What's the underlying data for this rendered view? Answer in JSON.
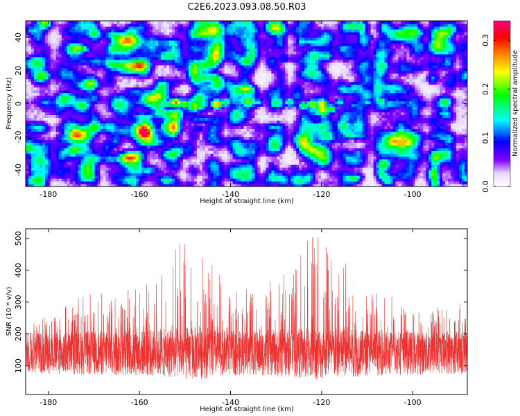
{
  "title": "C2E6.2023.093.08.50.R03",
  "chart_data": [
    {
      "type": "heatmap",
      "xlabel": "Height of straight line (km)",
      "ylabel": "Frequency (Hz)",
      "xlim": [
        -185,
        -88
      ],
      "ylim": [
        -50,
        50
      ],
      "x_ticks": [
        -180,
        -160,
        -140,
        -120,
        -100
      ],
      "y_ticks": [
        -40,
        -20,
        0,
        20,
        40
      ],
      "colorbar": {
        "label": "Normalized spectral amplitude",
        "range": [
          0.0,
          0.34
        ],
        "ticks": [
          0.0,
          0.1,
          0.2,
          0.3
        ],
        "colors": [
          "#ffffff",
          "#8000ff",
          "#0000ff",
          "#00ffff",
          "#00ff00",
          "#ffff00",
          "#ff8000",
          "#ff0000",
          "#ff0080"
        ]
      },
      "background_level": 0.05,
      "band_center_hz": 0,
      "band_halfwidth_hz": 4,
      "hotspots": [
        {
          "x": -181,
          "y": 1,
          "v": 0.12
        },
        {
          "x": -174,
          "y": 0,
          "v": 0.1
        },
        {
          "x": -164,
          "y": -1,
          "v": 0.16
        },
        {
          "x": -160,
          "y": 1,
          "v": 0.12
        },
        {
          "x": -156,
          "y": -1,
          "v": 0.17
        },
        {
          "x": -154,
          "y": 0,
          "v": 0.18
        },
        {
          "x": -152,
          "y": 1,
          "v": 0.28
        },
        {
          "x": -150,
          "y": 0,
          "v": 0.22
        },
        {
          "x": -148,
          "y": -1,
          "v": 0.2
        },
        {
          "x": -146,
          "y": 0,
          "v": 0.16
        },
        {
          "x": -143,
          "y": 0,
          "v": 0.27
        },
        {
          "x": -141,
          "y": 1,
          "v": 0.18
        },
        {
          "x": -138,
          "y": -2,
          "v": 0.13
        },
        {
          "x": -134,
          "y": 1,
          "v": 0.14
        },
        {
          "x": -130,
          "y": 0,
          "v": 0.12
        },
        {
          "x": -127,
          "y": 1,
          "v": 0.17
        },
        {
          "x": -124,
          "y": -1,
          "v": 0.18
        },
        {
          "x": -122,
          "y": 0,
          "v": 0.23
        },
        {
          "x": -120,
          "y": 0,
          "v": 0.26
        },
        {
          "x": -118,
          "y": -3,
          "v": 0.2
        },
        {
          "x": -116,
          "y": 1,
          "v": 0.15
        },
        {
          "x": -113,
          "y": -1,
          "v": 0.12
        },
        {
          "x": -110,
          "y": 1,
          "v": 0.14
        },
        {
          "x": -107,
          "y": 2,
          "v": 0.18
        },
        {
          "x": -105,
          "y": 0,
          "v": 0.14
        },
        {
          "x": -98,
          "y": 0,
          "v": 0.1
        },
        {
          "x": -112,
          "y": -30,
          "v": 0.13
        },
        {
          "x": -110,
          "y": 40,
          "v": 0.12
        },
        {
          "x": -176,
          "y": -40,
          "v": 0.1
        },
        {
          "x": -92,
          "y": 45,
          "v": 0.11
        },
        {
          "x": -172,
          "y": -37,
          "v": 0.1
        },
        {
          "x": -147,
          "y": -15,
          "v": 0.1
        }
      ]
    },
    {
      "type": "line",
      "xlabel": "Height of straight line (km)",
      "ylabel": "SNR (10 * v/v)",
      "xlim": [
        -185,
        -88
      ],
      "ylim": [
        10,
        530
      ],
      "x_ticks": [
        -180,
        -160,
        -140,
        -120,
        -100
      ],
      "y_ticks": [
        100,
        200,
        300,
        400,
        500
      ],
      "series": [
        {
          "color": "#ee3333",
          "sample_count": 3200,
          "baseline": 140,
          "noise_halfspread": 75,
          "floor": 20,
          "envelope_x": [
            -185,
            -178,
            -170,
            -160,
            -155,
            -151,
            -148,
            -145,
            -140,
            -132,
            -126,
            -123,
            -121,
            -118,
            -113,
            -108,
            -100,
            -92,
            -88
          ],
          "envelope_peak": [
            230,
            300,
            330,
            360,
            400,
            500,
            520,
            450,
            330,
            360,
            420,
            510,
            520,
            480,
            400,
            330,
            310,
            290,
            300
          ]
        }
      ]
    }
  ]
}
